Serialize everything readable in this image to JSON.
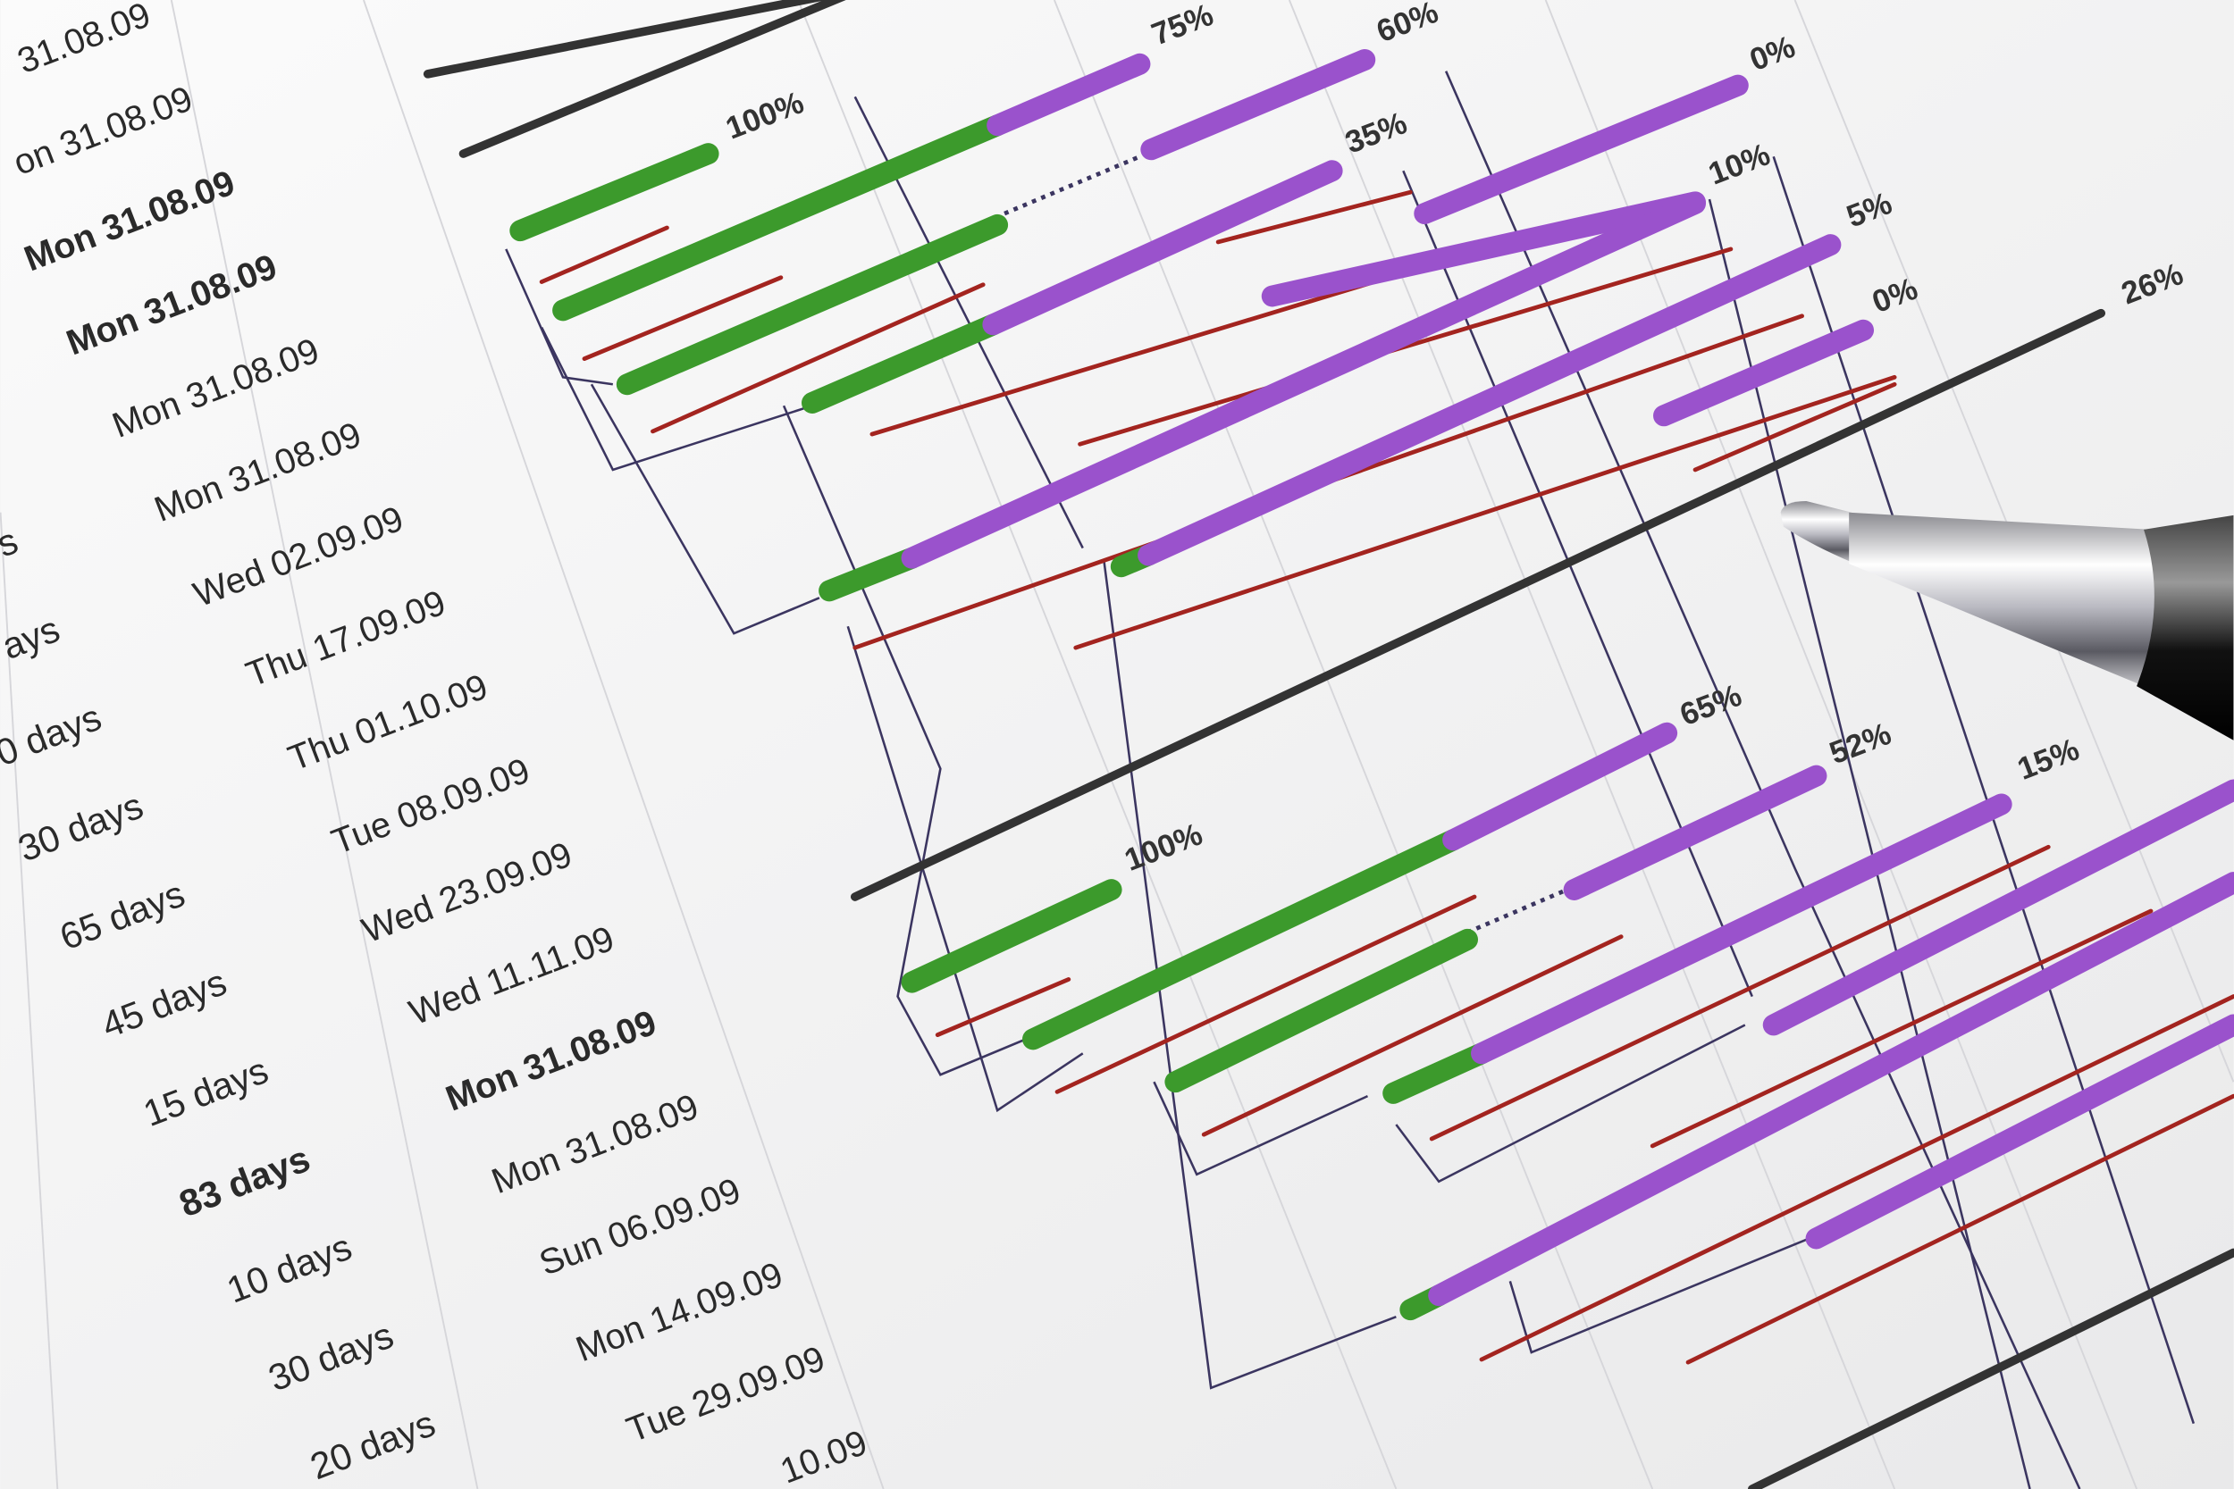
{
  "table": {
    "start_dates": [
      "31.08.09",
      "on 31.08.09",
      "Mon 31.08.09",
      "Mon 31.08.09",
      "Mon 31.08.09",
      "Mon 31.08.09",
      "Wed 02.09.09",
      "Thu 17.09.09",
      "Thu 01.10.09",
      "Tue 08.09.09",
      "Wed 23.09.09",
      "Wed 11.11.09",
      "Mon 31.08.09",
      "Mon 31.08.09",
      "Sun 06.09.09",
      "Mon 14.09.09",
      "Tue 29.09.09",
      "10.09"
    ],
    "durations": [
      "s",
      "ays",
      "0 days",
      "30 days",
      "65 days",
      "45 days",
      "15 days",
      "83 days",
      "10 days",
      "30 days",
      "20 days"
    ]
  },
  "gantt": {
    "progress_labels": [
      "100%",
      "75%",
      "60%",
      "0%",
      "35%",
      "10%",
      "5%",
      "0%",
      "26%",
      "100%",
      "65%",
      "52%",
      "15%"
    ]
  }
}
